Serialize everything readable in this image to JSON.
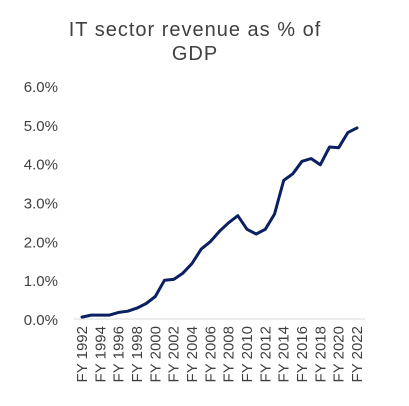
{
  "chart_data": {
    "type": "line",
    "title": "IT sector revenue as % of GDP",
    "xlabel": "",
    "ylabel": "",
    "x": [
      "FY 1992",
      "FY 1993",
      "FY 1994",
      "FY 1995",
      "FY 1996",
      "FY 1997",
      "FY 1998",
      "FY 1999",
      "FY 2000",
      "FY 2001",
      "FY 2002",
      "FY 2003",
      "FY 2004",
      "FY 2005",
      "FY 2006",
      "FY 2007",
      "FY 2008",
      "FY 2009",
      "FY 2010",
      "FY 2011",
      "FY 2012",
      "FY 2013",
      "FY 2014",
      "FY 2015",
      "FY 2016",
      "FY 2017",
      "FY 2018",
      "FY 2019",
      "FY 2020",
      "FY 2021",
      "FY 2022"
    ],
    "x_tick_labels": [
      "FY 1992",
      "FY 1994",
      "FY 1996",
      "FY 1998",
      "FY 2000",
      "FY 2002",
      "FY 2004",
      "FY 2006",
      "FY 2008",
      "FY 2010",
      "FY 2012",
      "FY 2014",
      "FY 2016",
      "FY 2018",
      "FY 2020",
      "FY 2022"
    ],
    "series": [
      {
        "values": [
          0.05,
          0.1,
          0.1,
          0.1,
          0.17,
          0.2,
          0.28,
          0.4,
          0.58,
          1.0,
          1.02,
          1.18,
          1.43,
          1.8,
          1.99,
          2.26,
          2.48,
          2.66,
          2.31,
          2.19,
          2.31,
          2.7,
          3.57,
          3.74,
          4.06,
          4.13,
          3.97,
          4.43,
          4.41,
          4.8,
          4.92
        ],
        "color": "#0b2060"
      }
    ],
    "ylim": [
      0,
      6
    ],
    "y_ticks": [
      "0.0%",
      "1.0%",
      "2.0%",
      "3.0%",
      "4.0%",
      "5.0%",
      "6.0%"
    ],
    "grid": false,
    "legend": "none"
  }
}
